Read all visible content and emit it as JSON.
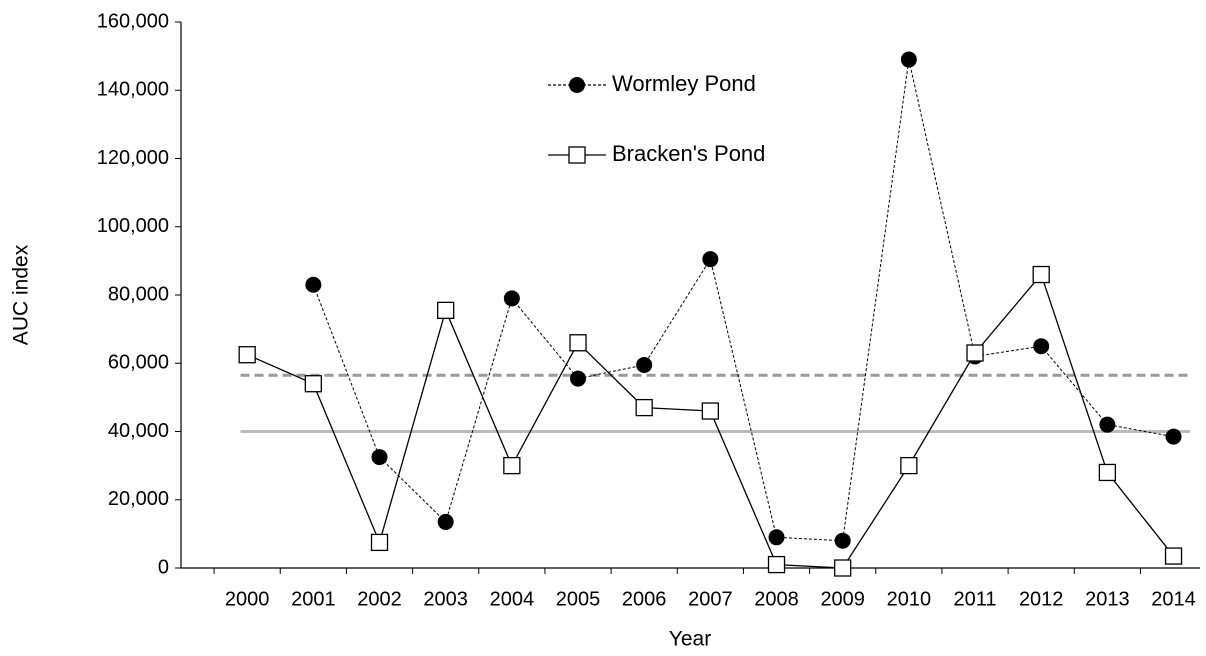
{
  "chart_data": {
    "type": "line",
    "x_label": "Year",
    "y_label": "AUC index",
    "categories": [
      "2000",
      "2001",
      "2002",
      "2003",
      "2004",
      "2005",
      "2006",
      "2007",
      "2008",
      "2009",
      "2010",
      "2011",
      "2012",
      "2013",
      "2014"
    ],
    "series": [
      {
        "name": "Wormley Pond",
        "color": "#000000",
        "line_style": "dotted",
        "marker": "filled-circle",
        "values": [
          null,
          83000,
          32500,
          13500,
          79000,
          55500,
          59500,
          90500,
          9000,
          8000,
          149000,
          62000,
          65000,
          42000,
          38500
        ]
      },
      {
        "name": "Bracken's Pond",
        "color": "#000000",
        "line_style": "solid",
        "marker": "open-square",
        "values": [
          62500,
          54000,
          7500,
          75500,
          30000,
          66000,
          47000,
          46000,
          1000,
          0,
          30000,
          63000,
          86000,
          28000,
          3500
        ]
      }
    ],
    "reference_lines": [
      {
        "value": 56500,
        "style": "dashed",
        "color": "#999999"
      },
      {
        "value": 40000,
        "style": "solid",
        "color": "#bbbbbb"
      }
    ],
    "ylim": [
      0,
      160000
    ],
    "yticks": [
      0,
      {
        "value": 20000,
        "label": "20,000"
      },
      {
        "value": 40000,
        "label": "40,000"
      },
      {
        "value": 60000,
        "label": "60,000"
      },
      {
        "value": 80000,
        "label": "80,000"
      },
      {
        "value": 100000,
        "label": "100,000"
      },
      {
        "value": 120000,
        "label": "120,000"
      },
      {
        "value": 140000,
        "label": "140,000"
      },
      {
        "value": 160000,
        "label": "160,000"
      }
    ],
    "grid": false,
    "legend_position": "top"
  }
}
